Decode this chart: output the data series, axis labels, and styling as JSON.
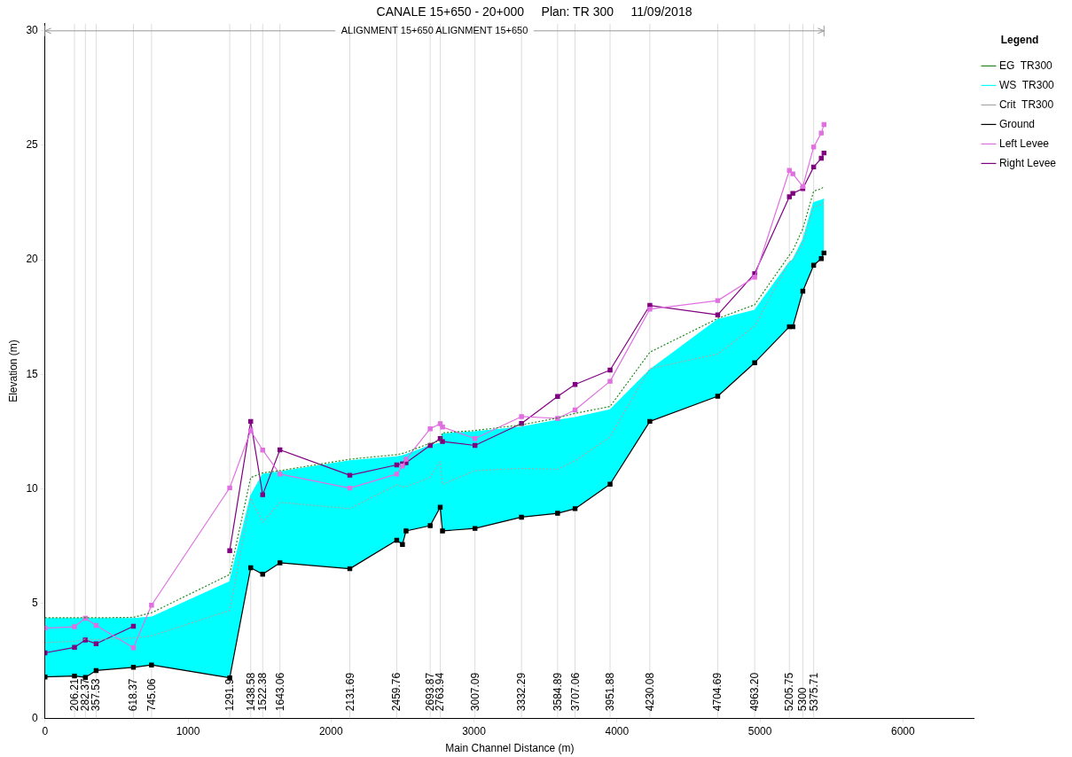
{
  "chart_data": {
    "type": "line",
    "title": "CANALE 15+650 - 20+000     Plan: TR 300     11/09/2018",
    "subtitle": "ALIGNMENT 15+650 ALIGNMENT 15+650",
    "xlabel": "Main Channel Distance (m)",
    "ylabel": "Elevation (m)",
    "legend_title": "Legend",
    "legend": "right",
    "x": [
      0,
      206.21,
      282.37,
      357.53,
      618.37,
      745.06,
      1291.9,
      1438.58,
      1522.38,
      1643.06,
      2131.69,
      2459.76,
      2500,
      2525,
      2693.87,
      2763.94,
      2780,
      3007.09,
      3332.29,
      3584.89,
      3707.06,
      3951.88,
      4230.08,
      4704.69,
      4963.2,
      5205.75,
      5230,
      5300,
      5375.71,
      5429,
      5448
    ],
    "xlim": [
      0,
      6500
    ],
    "xticks": [
      0,
      1000,
      2000,
      3000,
      4000,
      5000,
      6000
    ],
    "ylim": [
      0,
      30.3
    ],
    "yticks": [
      0,
      5,
      10,
      15,
      20,
      25,
      30
    ],
    "series": [
      {
        "name": "EG  TR300",
        "color": "#228b22",
        "line_style": "dotted",
        "marker": "none",
        "values": [
          4.38,
          4.38,
          4.38,
          4.38,
          4.4,
          4.6,
          6.27,
          10.5,
          10.7,
          10.8,
          11.3,
          11.5,
          11.55,
          11.6,
          12.0,
          12.1,
          12.45,
          12.55,
          12.8,
          13.1,
          13.3,
          13.6,
          15.97,
          17.44,
          18.04,
          20.2,
          20.4,
          21.36,
          23.0,
          23.1,
          23.2
        ]
      },
      {
        "name": "WS  TR300",
        "type": "area",
        "color": "#00ffff",
        "line_style": "solid",
        "marker": "none",
        "values": [
          4.35,
          4.35,
          4.35,
          4.35,
          4.35,
          4.41,
          5.95,
          9.7,
          10.64,
          10.75,
          11.23,
          11.4,
          11.45,
          11.5,
          11.9,
          12.0,
          12.4,
          12.5,
          12.7,
          13.0,
          13.12,
          13.45,
          15.2,
          17.39,
          17.8,
          19.89,
          20.0,
          20.87,
          22.5,
          22.6,
          22.65
        ]
      },
      {
        "name": "Crit  TR300",
        "color": "#a8a8a8",
        "line_style": "dotted",
        "marker": "none",
        "values": [
          3.3,
          3.35,
          3.45,
          3.43,
          3.5,
          3.59,
          4.7,
          9.6,
          8.55,
          9.42,
          9.14,
          10.18,
          10.1,
          10.1,
          10.5,
          11.19,
          10.2,
          10.8,
          10.9,
          10.86,
          11.23,
          12.27,
          15.25,
          15.89,
          17.11,
          19.9,
          20.0,
          20.7,
          22.3,
          22.4,
          22.5
        ]
      },
      {
        "name": "Ground",
        "color": "#000000",
        "line_style": "solid",
        "marker": "square",
        "values": [
          1.8,
          1.84,
          1.78,
          2.08,
          2.22,
          2.32,
          1.76,
          6.56,
          6.28,
          6.78,
          6.52,
          7.76,
          7.58,
          8.17,
          8.4,
          9.2,
          8.17,
          8.28,
          8.77,
          8.94,
          9.14,
          10.21,
          12.95,
          14.05,
          15.51,
          17.08,
          17.08,
          18.63,
          19.76,
          20.05,
          20.3
        ]
      },
      {
        "name": "Left Levee",
        "color": "#e070e0",
        "line_style": "solid",
        "marker": "square",
        "values": [
          3.93,
          3.99,
          4.36,
          4.05,
          3.07,
          4.93,
          10.05,
          12.54,
          11.7,
          10.65,
          10.04,
          10.65,
          11.0,
          11.3,
          12.63,
          12.85,
          12.7,
          12.2,
          13.16,
          13.08,
          13.45,
          14.7,
          17.85,
          18.22,
          19.24,
          23.9,
          23.75,
          23.2,
          24.92,
          25.53,
          25.9
        ]
      },
      {
        "name": "Right Levee",
        "color": "#800080",
        "line_style": "solid",
        "marker": "square",
        "values": [
          2.85,
          3.09,
          3.41,
          3.25,
          4.01,
          null,
          7.31,
          12.95,
          9.75,
          11.71,
          10.6,
          11.05,
          11.1,
          11.15,
          11.9,
          12.2,
          12.07,
          11.9,
          12.86,
          14.04,
          14.56,
          15.19,
          18.01,
          17.6,
          19.4,
          22.75,
          22.9,
          23.11,
          24.05,
          24.43,
          24.66
        ]
      }
    ],
    "ref_lines": [
      {
        "axis": "x",
        "value": 206.21,
        "label": "206.21",
        "color": "#dcdcdc"
      },
      {
        "axis": "x",
        "value": 282.37,
        "label": "282.37",
        "color": "#dcdcdc"
      },
      {
        "axis": "x",
        "value": 357.53,
        "label": "357.53",
        "color": "#dcdcdc"
      },
      {
        "axis": "x",
        "value": 618.37,
        "label": "618.37",
        "color": "#dcdcdc"
      },
      {
        "axis": "x",
        "value": 745.06,
        "label": "745.06",
        "color": "#dcdcdc"
      },
      {
        "axis": "x",
        "value": 1291.9,
        "label": "1291.9",
        "color": "#dcdcdc"
      },
      {
        "axis": "x",
        "value": 1438.58,
        "label": "1438.58",
        "color": "#dcdcdc"
      },
      {
        "axis": "x",
        "value": 1522.38,
        "label": "1522.38",
        "color": "#dcdcdc"
      },
      {
        "axis": "x",
        "value": 1643.06,
        "label": "1643.06",
        "color": "#dcdcdc"
      },
      {
        "axis": "x",
        "value": 2131.69,
        "label": "2131.69",
        "color": "#dcdcdc"
      },
      {
        "axis": "x",
        "value": 2459.76,
        "label": "2459.76",
        "color": "#dcdcdc"
      },
      {
        "axis": "x",
        "value": 2693.87,
        "label": "2693.87",
        "color": "#dcdcdc"
      },
      {
        "axis": "x",
        "value": 2763.94,
        "label": "2763.94",
        "color": "#dcdcdc"
      },
      {
        "axis": "x",
        "value": 3007.09,
        "label": "3007.09",
        "color": "#dcdcdc"
      },
      {
        "axis": "x",
        "value": 3332.29,
        "label": "3332.29",
        "color": "#dcdcdc"
      },
      {
        "axis": "x",
        "value": 3584.89,
        "label": "3584.89",
        "color": "#dcdcdc"
      },
      {
        "axis": "x",
        "value": 3707.06,
        "label": "3707.06",
        "color": "#dcdcdc"
      },
      {
        "axis": "x",
        "value": 3951.88,
        "label": "3951.88",
        "color": "#dcdcdc"
      },
      {
        "axis": "x",
        "value": 4230.08,
        "label": "4230.08",
        "color": "#dcdcdc"
      },
      {
        "axis": "x",
        "value": 4704.69,
        "label": "4704.69",
        "color": "#dcdcdc"
      },
      {
        "axis": "x",
        "value": 4963.2,
        "label": "4963.20",
        "color": "#dcdcdc"
      },
      {
        "axis": "x",
        "value": 5205.75,
        "label": "5205.75",
        "color": "#dcdcdc"
      },
      {
        "axis": "x",
        "value": 5300,
        "label": "5300",
        "color": "#dcdcdc"
      },
      {
        "axis": "x",
        "value": 5375.71,
        "label": "5375.71",
        "color": "#dcdcdc"
      }
    ]
  }
}
